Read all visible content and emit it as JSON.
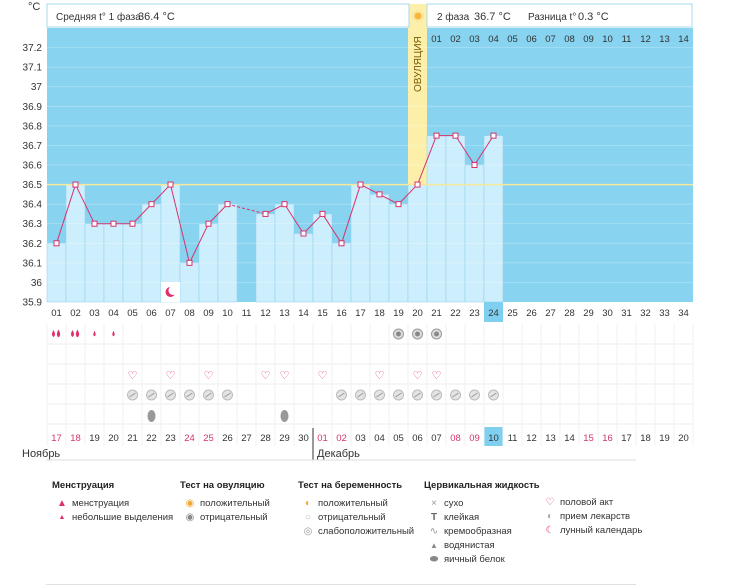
{
  "header": {
    "unit": "°C",
    "phase1_label": "Средняя t° 1 фаза",
    "phase1_value": "36.4 °C",
    "phase2_label": "2 фаза",
    "phase2_value": "36.7 °C",
    "diff_label": "Разница t°",
    "diff_value": "0.3 °C",
    "ovulation_label": "ОВУЛЯЦИЯ"
  },
  "chart_data": {
    "type": "line",
    "ylim": [
      35.9,
      37.3
    ],
    "yticks": [
      "35.9",
      "36",
      "36.1",
      "36.2",
      "36.3",
      "36.4",
      "36.5",
      "36.6",
      "36.7",
      "36.8",
      "36.9",
      "37",
      "37.1",
      "37.2"
    ],
    "cycle_days": [
      "01",
      "02",
      "03",
      "04",
      "05",
      "06",
      "07",
      "08",
      "09",
      "10",
      "11",
      "12",
      "13",
      "14",
      "15",
      "16",
      "17",
      "18",
      "19",
      "20",
      "21",
      "22",
      "23",
      "24",
      "25",
      "26",
      "27",
      "28",
      "29",
      "30",
      "31",
      "32",
      "33",
      "34"
    ],
    "temperatures": [
      36.2,
      36.5,
      36.3,
      36.3,
      36.3,
      36.4,
      36.5,
      36.1,
      36.3,
      36.4,
      null,
      36.35,
      36.4,
      36.25,
      36.35,
      36.2,
      36.5,
      36.45,
      36.4,
      36.5,
      36.75,
      36.75,
      36.6,
      36.75,
      null,
      null,
      null,
      null,
      null,
      null,
      null,
      null,
      null,
      null
    ],
    "coverline": 36.5,
    "ovulation_day_index": 19,
    "today_index": 23,
    "post_ovulation_days": [
      "01",
      "02",
      "03",
      "04",
      "05",
      "06",
      "07",
      "08",
      "09",
      "10",
      "11",
      "12",
      "13",
      "14"
    ],
    "dates": [
      "17",
      "18",
      "19",
      "20",
      "21",
      "22",
      "23",
      "24",
      "25",
      "26",
      "27",
      "28",
      "29",
      "30",
      "01",
      "02",
      "03",
      "04",
      "05",
      "06",
      "07",
      "08",
      "09",
      "10",
      "11",
      "12",
      "13",
      "14",
      "15",
      "16",
      "17",
      "18",
      "19",
      "20"
    ],
    "red_date_indices": [
      0,
      1,
      7,
      8,
      14,
      15,
      21,
      22,
      28,
      29
    ],
    "month_start_index": 14,
    "months": [
      "Ноябрь",
      "Декабрь"
    ],
    "moon_day_index": 6,
    "rows": {
      "menstruation": [
        3,
        3,
        1,
        1
      ],
      "ovulation_test_negative": [
        18,
        19,
        20
      ],
      "intercourse": [
        4,
        6,
        8,
        11,
        12,
        14,
        17,
        19,
        20
      ],
      "medication": [
        4,
        5,
        6,
        7,
        8,
        9,
        15,
        16,
        17,
        18,
        19,
        20,
        21,
        22,
        23
      ],
      "egg_white": [
        5,
        12
      ]
    },
    "dashed_gap": [
      9,
      11
    ]
  },
  "legend": {
    "menstruation": {
      "title": "Менструация",
      "items": [
        "менструация",
        "небольшие выделения"
      ]
    },
    "ovulation_test": {
      "title": "Тест на овуляцию",
      "items": [
        "положительный",
        "отрицательный"
      ]
    },
    "pregnancy_test": {
      "title": "Тест на беременность",
      "items": [
        "положительный",
        "отрицательный",
        "слабоположительный"
      ]
    },
    "cervical": {
      "title": "Цервикальная жидкость",
      "items": [
        "сухо",
        "клейкая",
        "кремообразная",
        "водянистая",
        "яичный белок"
      ]
    },
    "other": {
      "items": [
        "половой акт",
        "прием лекарств",
        "лунный календарь"
      ]
    }
  },
  "colors": {
    "sky": "#87d3f0",
    "bar": "#cdeefc",
    "bar_border": "#8fd0ee",
    "line": "#d6336c",
    "ovulation": "#fbefaa",
    "today": "#7fd0f0",
    "coverline": "#f6e99a"
  }
}
